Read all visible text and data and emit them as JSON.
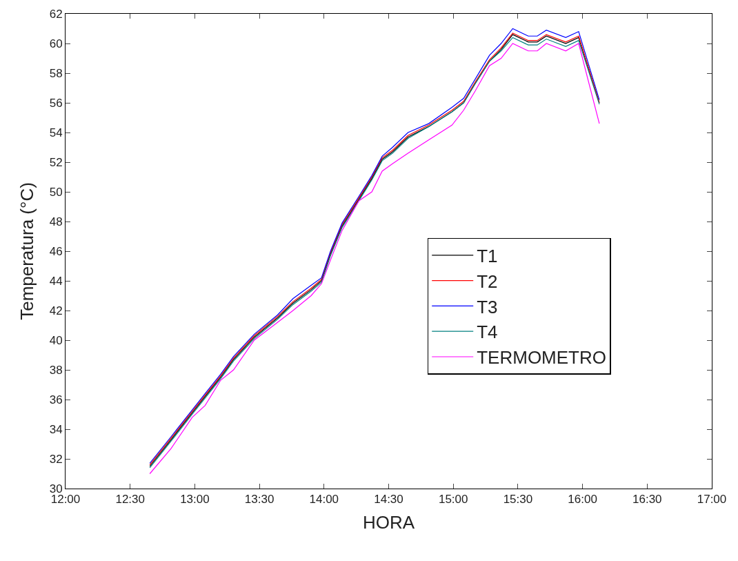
{
  "chart_data": {
    "type": "line",
    "xlabel": "HORA",
    "ylabel": "Temperatura (°C)",
    "x": [
      12.652,
      12.817,
      12.98,
      13.08,
      13.2,
      13.3,
      13.46,
      13.64,
      13.76,
      13.9,
      13.98,
      14.05,
      14.14,
      14.27,
      14.37,
      14.45,
      14.53,
      14.65,
      14.81,
      14.99,
      15.08,
      15.17,
      15.28,
      15.37,
      15.46,
      15.58,
      15.65,
      15.72,
      15.87,
      15.97,
      16.13
    ],
    "series": [
      {
        "name": "T1",
        "color": "#000000",
        "values": [
          31.5,
          33.3,
          35.1,
          36.2,
          37.5,
          38.7,
          40.2,
          41.5,
          42.5,
          43.4,
          44.0,
          45.8,
          47.7,
          49.5,
          50.9,
          52.2,
          52.7,
          53.7,
          54.4,
          55.4,
          56.0,
          57.3,
          58.8,
          59.6,
          60.6,
          60.1,
          60.1,
          60.5,
          60.0,
          60.4,
          56.0
        ]
      },
      {
        "name": "T2",
        "color": "#ff0000",
        "values": [
          31.6,
          33.4,
          35.2,
          36.3,
          37.6,
          38.8,
          40.3,
          41.6,
          42.6,
          43.5,
          44.1,
          45.9,
          47.8,
          49.6,
          51.0,
          52.3,
          52.8,
          53.8,
          54.5,
          55.5,
          56.1,
          57.4,
          58.9,
          59.7,
          60.7,
          60.2,
          60.2,
          60.6,
          60.1,
          60.5,
          56.0
        ]
      },
      {
        "name": "T3",
        "color": "#0000ff",
        "values": [
          31.7,
          33.5,
          35.3,
          36.4,
          37.7,
          38.9,
          40.4,
          41.7,
          42.8,
          43.7,
          44.2,
          46.0,
          47.9,
          49.7,
          51.1,
          52.4,
          53.0,
          54.0,
          54.6,
          55.7,
          56.3,
          57.6,
          59.2,
          60.0,
          61.0,
          60.5,
          60.5,
          60.9,
          60.4,
          60.8,
          56.2
        ]
      },
      {
        "name": "T4",
        "color": "#008080",
        "values": [
          31.4,
          33.2,
          35.0,
          36.1,
          37.4,
          38.6,
          40.1,
          41.4,
          42.4,
          43.3,
          43.9,
          45.7,
          47.6,
          49.4,
          50.8,
          52.1,
          52.6,
          53.6,
          54.4,
          55.4,
          56.0,
          57.3,
          58.8,
          59.5,
          60.4,
          59.9,
          59.9,
          60.3,
          59.8,
          60.2,
          55.9
        ]
      },
      {
        "name": "TERMOMETRO",
        "color": "#ff00ff",
        "values": [
          31.0,
          32.7,
          34.8,
          35.6,
          37.3,
          38.0,
          40.0,
          41.2,
          42.0,
          43.0,
          43.8,
          45.4,
          47.4,
          49.4,
          50.0,
          51.4,
          51.9,
          52.6,
          53.5,
          54.5,
          55.5,
          56.8,
          58.5,
          59.0,
          60.0,
          59.5,
          59.5,
          60.0,
          59.5,
          60.0,
          54.6
        ]
      }
    ],
    "xlim": [
      12,
      17
    ],
    "xticks": [
      {
        "value": 12,
        "label": "12:00"
      },
      {
        "value": 12.5,
        "label": "12:30"
      },
      {
        "value": 13,
        "label": "13:00"
      },
      {
        "value": 13.5,
        "label": "13:30"
      },
      {
        "value": 14,
        "label": "14:00"
      },
      {
        "value": 14.5,
        "label": "14:30"
      },
      {
        "value": 15,
        "label": "15:00"
      },
      {
        "value": 15.5,
        "label": "15:30"
      },
      {
        "value": 16,
        "label": "16:00"
      },
      {
        "value": 16.5,
        "label": "16:30"
      },
      {
        "value": 17,
        "label": "17:00"
      }
    ],
    "ylim": [
      30,
      62
    ],
    "yticks": [
      30,
      32,
      34,
      36,
      38,
      40,
      42,
      44,
      46,
      48,
      50,
      52,
      54,
      56,
      58,
      60,
      62
    ],
    "legend": "right",
    "marker": "none",
    "line_style": "solid"
  }
}
